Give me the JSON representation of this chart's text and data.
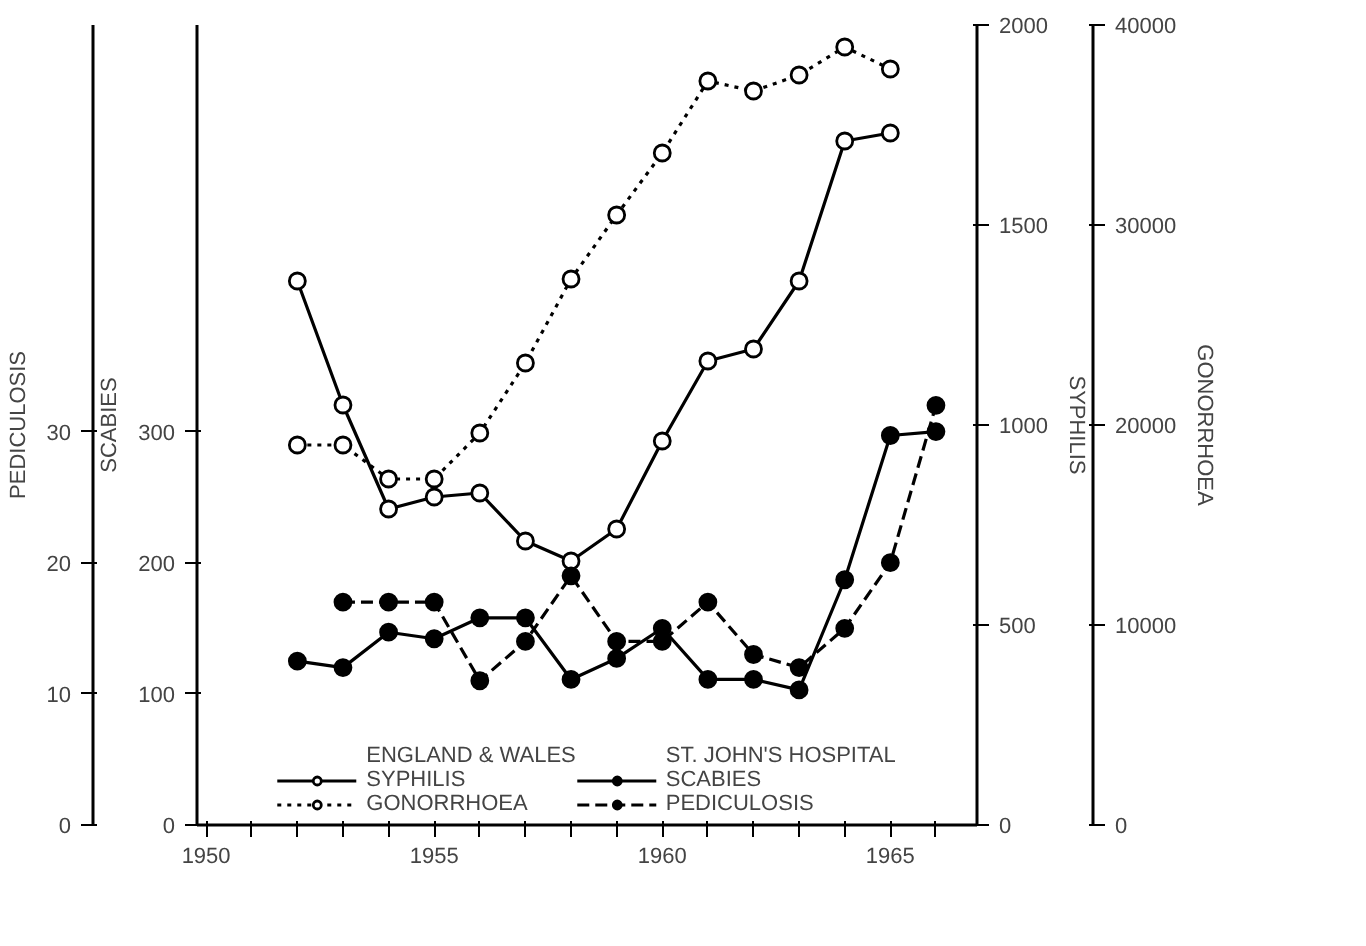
{
  "chart_data": [
    {
      "type": "line",
      "x": [
        1952,
        1953,
        1954,
        1955,
        1956,
        1957,
        1958,
        1959,
        1960,
        1961,
        1962,
        1963,
        1964,
        1965
      ],
      "xlim": [
        1949.8,
        1966.9
      ],
      "xticks": [
        1950,
        {
          "value": 1951,
          "label": null
        },
        {
          "value": 1952,
          "label": null
        },
        {
          "value": 1953,
          "label": null
        },
        {
          "value": 1954,
          "label": null
        },
        1955,
        {
          "value": 1956,
          "label": null
        },
        {
          "value": 1957,
          "label": null
        },
        {
          "value": 1958,
          "label": null
        },
        {
          "value": 1959,
          "label": null
        },
        1960,
        {
          "value": 1961,
          "label": null
        },
        {
          "value": 1962,
          "label": null
        },
        {
          "value": 1963,
          "label": null
        },
        {
          "value": 1964,
          "label": null
        },
        1965,
        {
          "value": 1966,
          "label": null
        }
      ],
      "ylabel": "SYPHILIS",
      "ylim": [
        0,
        2000
      ],
      "yticks": [
        0,
        500,
        1000,
        1500,
        2000
      ],
      "y2label": "GONORRHOEA",
      "y2lim": [
        0,
        40000
      ],
      "y2ticks": [
        0,
        10000,
        20000,
        30000,
        40000
      ],
      "legend_title": "ENGLAND & WALES",
      "legend": "bottom",
      "grid": false,
      "series": [
        {
          "name": "SYPHILIS",
          "color": "#000000",
          "marker": "circle_open",
          "line_style": "solid",
          "values": [
            1360,
            1050,
            790,
            820,
            830,
            710,
            660,
            740,
            960,
            1160,
            1190,
            1360,
            1710,
            1730
          ]
        },
        {
          "name": "GONORRHOEA",
          "color": "#000000",
          "axis": "y2",
          "marker": "circle_open",
          "line_style": "dotted",
          "values": [
            19000,
            19000,
            17300,
            17300,
            19600,
            23100,
            27300,
            30500,
            33600,
            37200,
            36700,
            37500,
            38900,
            37800
          ]
        }
      ]
    },
    {
      "type": "line",
      "x": [
        1952,
        1953,
        1954,
        1955,
        1956,
        1957,
        1958,
        1959,
        1960,
        1961,
        1962,
        1963,
        1964,
        1965,
        1966
      ],
      "xlim": [
        1949.8,
        1966.9
      ],
      "tick_labels": "y",
      "ylabel": "SCABIES",
      "ylim": [
        0,
        610
      ],
      "yticks": [
        0,
        100,
        200,
        300
      ],
      "y2label": "PEDICULOSIS",
      "y2lim": [
        0,
        61
      ],
      "y2ticks": [
        0,
        10,
        20,
        30
      ],
      "legend_title": "ST. JOHN'S HOSPITAL",
      "legend": "bottom",
      "grid": false,
      "series": [
        {
          "name": "SCABIES",
          "color": "#000000",
          "marker": "circle",
          "line_style": "solid",
          "values": [
            125,
            120,
            147,
            142,
            158,
            158,
            111,
            127,
            150,
            111,
            111,
            103,
            187,
            297,
            300
          ]
        },
        {
          "name": "PEDICULOSIS",
          "color": "#000000",
          "axis": "y2",
          "marker": "circle",
          "line_style": "dashed",
          "values": [
            null,
            17,
            17,
            17,
            11,
            14,
            19,
            14,
            14,
            17,
            13,
            12,
            15,
            20,
            32
          ]
        }
      ]
    }
  ]
}
